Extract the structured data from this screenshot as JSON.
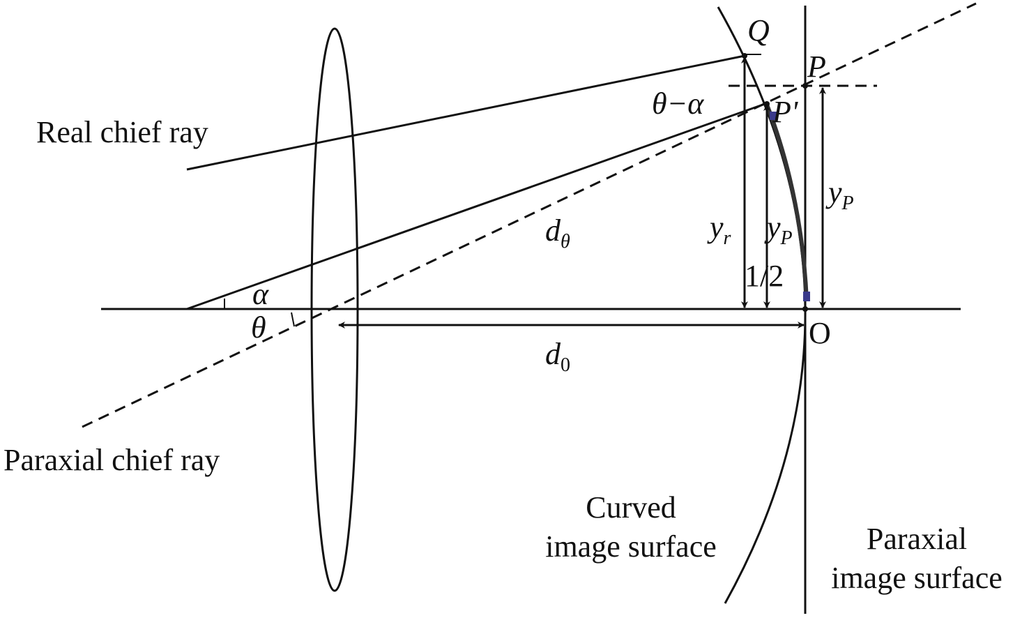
{
  "labels": {
    "real_chief_ray": "Real chief ray",
    "paraxial_chief_ray": "Paraxial chief ray",
    "curved_surface_line1": "Curved",
    "curved_surface_line2": "image surface",
    "paraxial_surface_line1": "Paraxial",
    "paraxial_surface_line2": "image surface",
    "Q": "Q",
    "P": "P",
    "P_prime": "P'",
    "theta_minus_alpha": "θ−α",
    "y_r": "y",
    "y_r_sub": "r",
    "y_P_half": "y",
    "y_P_half_sub": "P",
    "half": "1/2",
    "y_P": "y",
    "y_P_sub": "P",
    "d_theta": "d",
    "d_theta_sub": "θ",
    "d_0": "d",
    "d_0_sub": "0",
    "alpha": "α",
    "theta": "θ",
    "O": "O"
  },
  "colors": {
    "line": "#111111",
    "highlight": "#3a3a8a"
  }
}
